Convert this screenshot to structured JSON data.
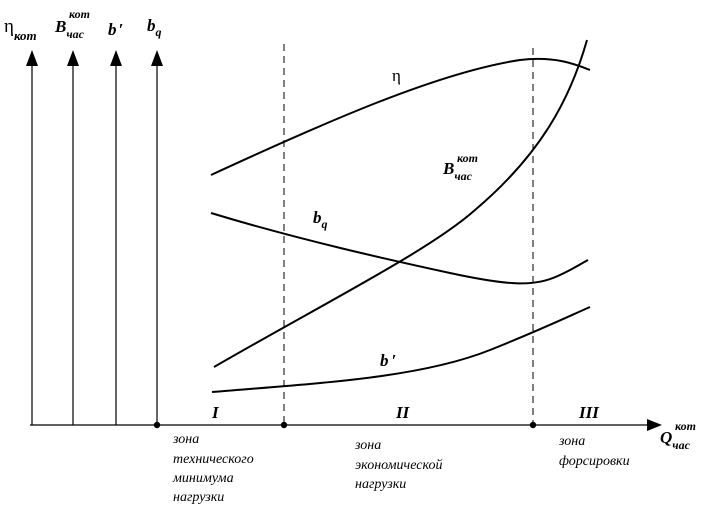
{
  "axes": {
    "eta_kot": {
      "main": "η",
      "sub": "кот"
    },
    "b_chas": {
      "main": "B",
      "sub": "час",
      "sup": "кот"
    },
    "b_prime": {
      "main": "b",
      "prime": "′"
    },
    "b_q": {
      "main": "b",
      "sub": "q"
    },
    "q_chas": {
      "main": "Q",
      "sub": "час",
      "sup": "кот"
    }
  },
  "curves": {
    "eta": {
      "main": "η"
    },
    "b_chas": {
      "main": "B",
      "sub": "час",
      "sup": "кот"
    },
    "b_q": {
      "main": "b",
      "sub": "q"
    },
    "b_prime": {
      "main": "b",
      "prime": "′"
    }
  },
  "zones": [
    {
      "numeral": "I",
      "lines": [
        "зона",
        "технического",
        "минимума",
        "нагрузки"
      ]
    },
    {
      "numeral": "II",
      "lines": [
        "зона",
        "экономической",
        "нагрузки"
      ]
    },
    {
      "numeral": "III",
      "lines": [
        "зона",
        "форсировки"
      ]
    }
  ]
}
